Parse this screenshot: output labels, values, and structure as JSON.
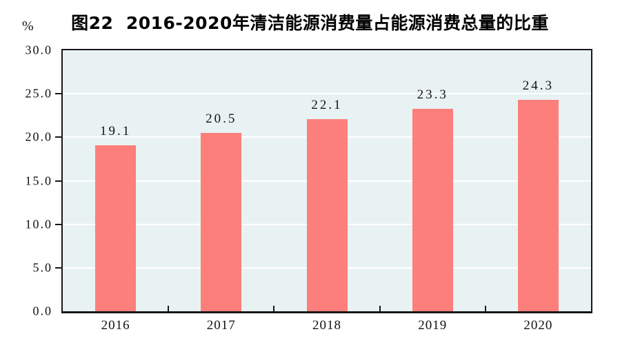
{
  "title": "图22  2016-2020年清洁能源消费量占能源消费总量的比重",
  "y_unit_label": "%",
  "chart_data": {
    "type": "bar",
    "title": "图22  2016-2020年清洁能源消费量占能源消费总量的比重",
    "categories": [
      "2016",
      "2017",
      "2018",
      "2019",
      "2020"
    ],
    "values": [
      19.1,
      20.5,
      22.1,
      23.3,
      24.3
    ],
    "data_labels": [
      "19.1",
      "20.5",
      "22.1",
      "23.3",
      "24.3"
    ],
    "xlabel": "",
    "ylabel": "%",
    "ylim": [
      0,
      30
    ],
    "ytick_interval": 5,
    "ytick_labels": [
      "0.0",
      "5.0",
      "10.0",
      "15.0",
      "20.0",
      "25.0",
      "30.0"
    ],
    "grid": true,
    "legend_position": "none",
    "colors": {
      "bar_fill": "#FC7F7B",
      "plot_background": "#E9F2F3",
      "gridline": "#FFFFFF",
      "axis": "#161616",
      "text": "#111111"
    }
  }
}
